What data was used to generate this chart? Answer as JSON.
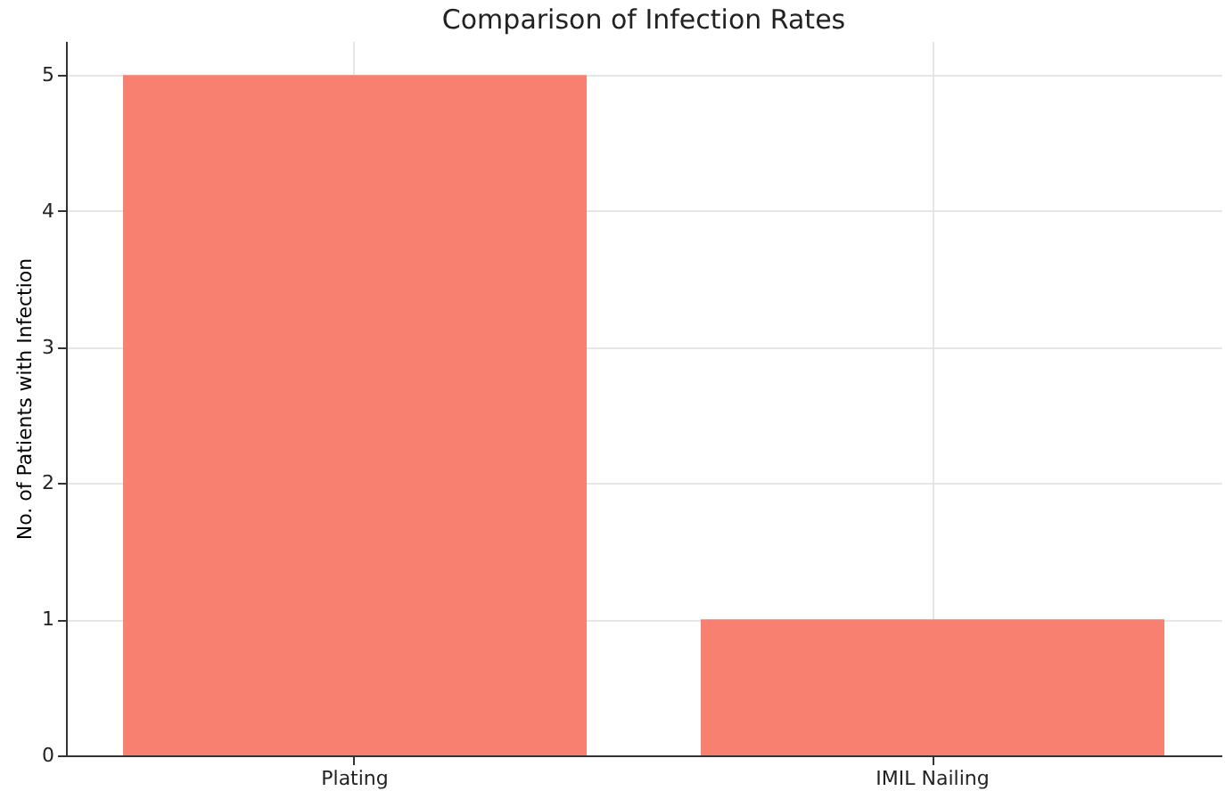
{
  "chart_data": {
    "type": "bar",
    "title": "Comparison of Infection Rates",
    "ylabel": "No. of Patients with Infection",
    "categories": [
      "Plating",
      "IMIL Nailing"
    ],
    "values": [
      5,
      1
    ],
    "color": "#f88070",
    "ylim": [
      0,
      5.25
    ],
    "yticks": [
      0,
      1,
      2,
      3,
      4,
      5
    ],
    "grid": true
  }
}
